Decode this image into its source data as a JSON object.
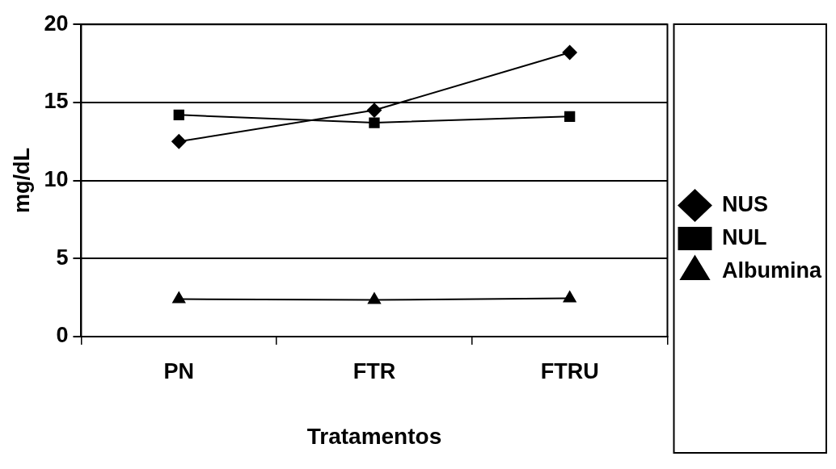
{
  "chart_data": {
    "type": "line",
    "xlabel": "Tratamentos",
    "ylabel": "mg/dL",
    "categories": [
      "PN",
      "FTR",
      "FTRU"
    ],
    "series": [
      {
        "name": "NUS",
        "color": "#000000",
        "marker": "diamond",
        "values": [
          12.5,
          14.5,
          18.2
        ]
      },
      {
        "name": "NUL",
        "color": "#000000",
        "marker": "square",
        "values": [
          14.2,
          13.7,
          14.1
        ]
      },
      {
        "name": "Albumina",
        "color": "#000000",
        "marker": "triangle",
        "values": [
          2.4,
          2.35,
          2.45
        ]
      }
    ],
    "ylim": [
      0,
      20
    ],
    "yticks": [
      0,
      5,
      10,
      15,
      20
    ],
    "grid": "y",
    "legend": "right",
    "line_style": "solid"
  }
}
